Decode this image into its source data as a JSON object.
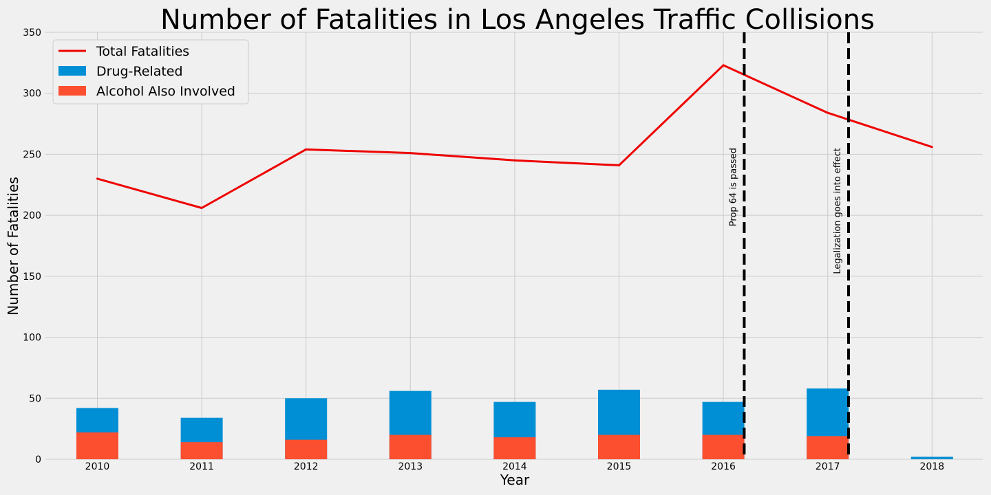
{
  "chart_data": {
    "type": "bar",
    "title": "Number of Fatalities in Los Angeles Traffic Collisions",
    "xlabel": "Year",
    "ylabel": "Number of Fatalities",
    "categories": [
      "2010",
      "2011",
      "2012",
      "2013",
      "2014",
      "2015",
      "2016",
      "2017",
      "2018"
    ],
    "ylim": [
      0,
      350
    ],
    "yticks": [
      0,
      50,
      100,
      150,
      200,
      250,
      300,
      350
    ],
    "grid": true,
    "legend_position": "top-left",
    "series": [
      {
        "name": "Total Fatalities",
        "type": "line",
        "color": "#ee0000",
        "values": [
          230,
          206,
          254,
          251,
          245,
          241,
          323,
          284,
          256
        ]
      },
      {
        "name": "Drug-Related",
        "type": "bar",
        "color": "#008fd5",
        "values": [
          42,
          34,
          50,
          56,
          47,
          57,
          47,
          58,
          2
        ]
      },
      {
        "name": "Alcohol Also Involved",
        "type": "bar",
        "color": "#fc4f30",
        "values": [
          22,
          14,
          16,
          20,
          18,
          20,
          20,
          19,
          0
        ]
      }
    ],
    "annotations": [
      {
        "type": "vline",
        "x": 2016.2,
        "style": "dashed",
        "color": "#000000",
        "label": "Prop 64 is passed"
      },
      {
        "type": "vline",
        "x": 2017.2,
        "style": "dashed",
        "color": "#000000",
        "label": "Legalization goes into effect"
      }
    ]
  }
}
